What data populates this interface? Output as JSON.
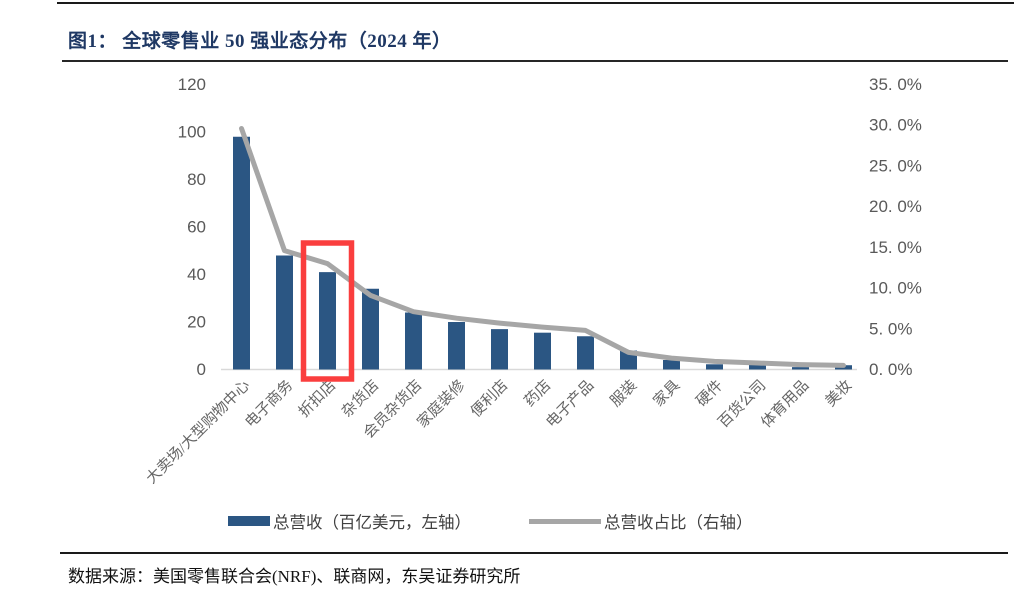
{
  "figure": {
    "title": "图1：  全球零售业 50 强业态分布（2024 年）",
    "source": "数据来源：美国零售联合会(NRF)、联商网，东吴证券研究所"
  },
  "legend": [
    {
      "swatch": "bar-swatch",
      "label": "总营收（百亿美元，左轴）"
    },
    {
      "swatch": "line-swatch",
      "label": "总营收占比（右轴）"
    }
  ],
  "colors": {
    "bar": "#2b5683",
    "line": "#a6a6a6",
    "highlight": "#fa3e3e",
    "title": "#1f3864",
    "axis_text": "#595959",
    "category_text": "#666666",
    "baseline": "#d9d9d9"
  },
  "chart_data": {
    "type": "bar+line combo",
    "title": "全球零售业 50 强业态分布（2024 年）",
    "categories": [
      "大卖场/大型购物中心",
      "电子商务",
      "折扣店",
      "杂货店",
      "会员杂货店",
      "家庭装修",
      "便利店",
      "药店",
      "电子产品",
      "服装",
      "家具",
      "硬件",
      "百货公司",
      "体育用品",
      "美妆"
    ],
    "series": [
      {
        "name": "总营收（百亿美元，左轴）",
        "type": "bar",
        "axis": "left",
        "values": [
          98,
          48,
          41,
          34,
          24,
          20,
          17,
          15.5,
          14,
          8,
          4,
          2.2,
          2,
          1,
          1.8
        ]
      },
      {
        "name": "总营收占比（右轴）",
        "type": "line",
        "axis": "right",
        "values_percent": [
          29.6,
          14.6,
          13.0,
          9.1,
          7.1,
          6.3,
          5.7,
          5.2,
          4.8,
          2.1,
          1.4,
          1.0,
          0.8,
          0.6,
          0.5
        ]
      }
    ],
    "left_axis": {
      "min": 0,
      "max": 120,
      "ticks": [
        "120",
        "100",
        "80",
        "60",
        "40",
        "20",
        "0"
      ]
    },
    "right_axis": {
      "min": 0,
      "max": 35,
      "ticks": [
        "35. 0%",
        "30. 0%",
        "25. 0%",
        "20. 0%",
        "15. 0%",
        "10. 0%",
        "5. 0%",
        "0. 0%"
      ]
    },
    "grid": false,
    "legend_position": "bottom",
    "highlight": {
      "shape": "red-rectangle",
      "category_index": 2,
      "category_label": "折扣店"
    }
  }
}
